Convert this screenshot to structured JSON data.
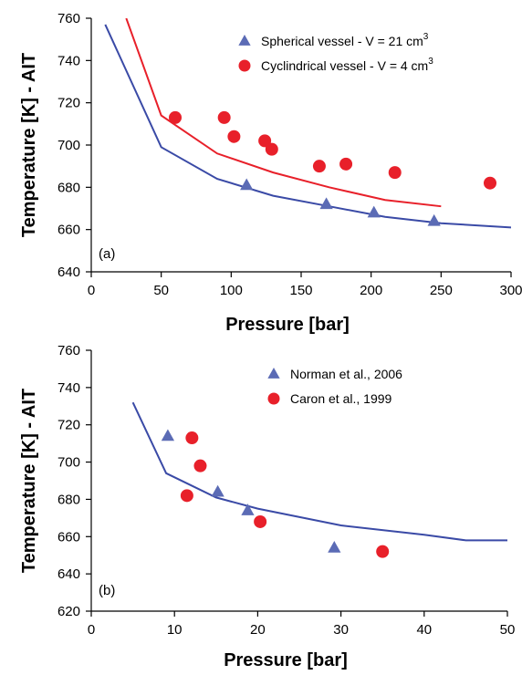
{
  "chart_data": [
    {
      "type": "line+scatter",
      "panel_label": "(a)",
      "xlabel": "Pressure [bar]",
      "ylabel": "Temperature [K] - AIT",
      "xlim": [
        0,
        300
      ],
      "ylim": [
        640,
        760
      ],
      "xticks": [
        0,
        50,
        100,
        150,
        200,
        250,
        300
      ],
      "yticks": [
        640,
        660,
        680,
        700,
        720,
        740,
        760
      ],
      "grid": false,
      "legend_position": "top-right",
      "legend": [
        {
          "marker": "triangle",
          "color": "#5b6bb5",
          "text": "Spherical vessel - V = 21 cm",
          "sup": "3"
        },
        {
          "marker": "circle",
          "color": "#e8202a",
          "text": "Cyclindrical  vessel - V = 4 cm",
          "sup": "3"
        }
      ],
      "lines": [
        {
          "color": "#3a4aa6",
          "x": [
            10,
            50,
            90,
            130,
            170,
            210,
            250,
            300
          ],
          "y": [
            757,
            699,
            684,
            676,
            671,
            666,
            663,
            661
          ]
        },
        {
          "color": "#e8202a",
          "x": [
            25,
            50,
            90,
            130,
            170,
            210,
            250
          ],
          "y": [
            760,
            714,
            696,
            687,
            680,
            674,
            671
          ]
        }
      ],
      "scatter": [
        {
          "marker": "triangle",
          "color": "#5b6bb5",
          "x": [
            111,
            168,
            202,
            245
          ],
          "y": [
            681,
            672,
            668,
            664
          ]
        },
        {
          "marker": "circle",
          "color": "#e8202a",
          "x": [
            60,
            95,
            102,
            124,
            129,
            163,
            182,
            217,
            285
          ],
          "y": [
            713,
            713,
            704,
            702,
            698,
            690,
            691,
            687,
            682
          ]
        }
      ]
    },
    {
      "type": "line+scatter",
      "panel_label": "(b)",
      "xlabel": "Pressure [bar]",
      "ylabel": "Temperature [K] - AIT",
      "xlim": [
        0,
        50
      ],
      "ylim": [
        620,
        760
      ],
      "xticks": [
        0,
        10,
        20,
        30,
        40,
        50
      ],
      "yticks": [
        620,
        640,
        660,
        680,
        700,
        720,
        740,
        760
      ],
      "grid": false,
      "legend_position": "top-right",
      "legend": [
        {
          "marker": "triangle",
          "color": "#5b6bb5",
          "text": "Norman et al., 2006",
          "sup": ""
        },
        {
          "marker": "circle",
          "color": "#e8202a",
          "text": "Caron et al., 1999",
          "sup": ""
        }
      ],
      "lines": [
        {
          "color": "#3a4aa6",
          "x": [
            5,
            9,
            15,
            20,
            30,
            40,
            45,
            50
          ],
          "y": [
            732,
            694,
            681,
            675,
            666,
            661,
            658,
            658
          ]
        }
      ],
      "scatter": [
        {
          "marker": "triangle",
          "color": "#5b6bb5",
          "x": [
            9.2,
            15.2,
            18.8,
            29.2
          ],
          "y": [
            714,
            684,
            674,
            654
          ]
        },
        {
          "marker": "circle",
          "color": "#e8202a",
          "x": [
            11.5,
            12.1,
            13.1,
            20.3,
            35
          ],
          "y": [
            682,
            713,
            698,
            668,
            652
          ]
        }
      ]
    }
  ]
}
